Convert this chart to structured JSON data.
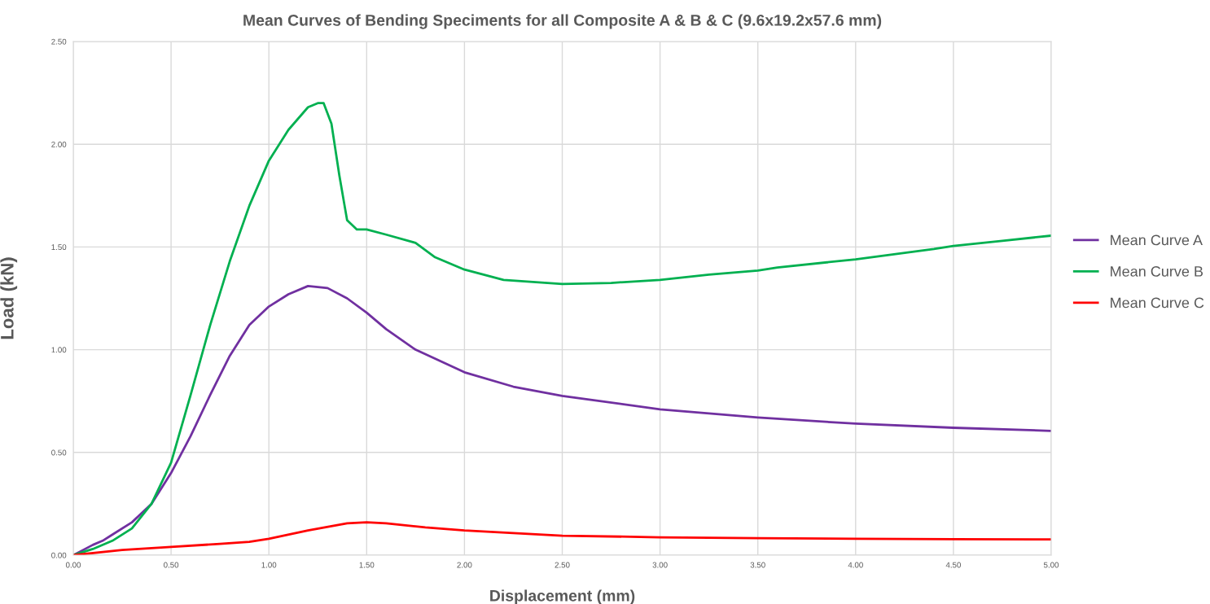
{
  "chart_data": {
    "type": "line",
    "title": "Mean Curves of Bending Speciments for all Composite A & B & C (9.6x19.2x57.6 mm)",
    "xlabel": "Displacement (mm)",
    "ylabel": "Load (kN)",
    "xlim": [
      0,
      5
    ],
    "ylim": [
      0,
      2.5
    ],
    "xticks": [
      {
        "value": 0,
        "label": "0.00"
      },
      {
        "value": 0.5,
        "label": "0.50"
      },
      {
        "value": 1,
        "label": "1.00"
      },
      {
        "value": 1.5,
        "label": "1.50"
      },
      {
        "value": 2,
        "label": "2.00"
      },
      {
        "value": 2.5,
        "label": "2.50"
      },
      {
        "value": 3,
        "label": "3.00"
      },
      {
        "value": 3.5,
        "label": "3.50"
      },
      {
        "value": 4,
        "label": "4.00"
      },
      {
        "value": 4.5,
        "label": "4.50"
      },
      {
        "value": 5,
        "label": "5.00"
      }
    ],
    "yticks": [
      {
        "value": 0,
        "label": "0.00"
      },
      {
        "value": 0.5,
        "label": "0.50"
      },
      {
        "value": 1,
        "label": "1.00"
      },
      {
        "value": 1.5,
        "label": "1.50"
      },
      {
        "value": 2,
        "label": "2.00"
      },
      {
        "value": 2.5,
        "label": "2.50"
      }
    ],
    "grid": true,
    "legend": "right",
    "marker": "none",
    "line_style": "solid",
    "series": [
      {
        "name": "Mean Curve A",
        "color": "#7030a0",
        "x": [
          0,
          0.1,
          0.15,
          0.2,
          0.3,
          0.4,
          0.5,
          0.6,
          0.7,
          0.8,
          0.9,
          1.0,
          1.1,
          1.2,
          1.3,
          1.4,
          1.5,
          1.6,
          1.75,
          2.0,
          2.25,
          2.5,
          3.0,
          3.5,
          4.0,
          4.5,
          5.0
        ],
        "values": [
          0,
          0.05,
          0.07,
          0.1,
          0.16,
          0.25,
          0.4,
          0.58,
          0.78,
          0.97,
          1.12,
          1.21,
          1.27,
          1.31,
          1.3,
          1.25,
          1.18,
          1.1,
          1.0,
          0.89,
          0.82,
          0.775,
          0.71,
          0.67,
          0.64,
          0.62,
          0.605
        ]
      },
      {
        "name": "Mean Curve B",
        "color": "#00b050",
        "x": [
          0,
          0.1,
          0.2,
          0.3,
          0.4,
          0.5,
          0.6,
          0.7,
          0.8,
          0.9,
          1.0,
          1.1,
          1.2,
          1.25,
          1.28,
          1.32,
          1.36,
          1.4,
          1.45,
          1.5,
          1.6,
          1.75,
          1.85,
          2.0,
          2.2,
          2.5,
          2.75,
          3.0,
          3.25,
          3.5,
          3.6,
          4.0,
          4.4,
          4.5,
          4.75,
          5.0
        ],
        "values": [
          0,
          0.03,
          0.07,
          0.13,
          0.25,
          0.45,
          0.78,
          1.12,
          1.43,
          1.7,
          1.92,
          2.07,
          2.18,
          2.2,
          2.2,
          2.1,
          1.85,
          1.63,
          1.585,
          1.585,
          1.56,
          1.52,
          1.45,
          1.39,
          1.34,
          1.32,
          1.325,
          1.34,
          1.365,
          1.385,
          1.4,
          1.44,
          1.49,
          1.505,
          1.53,
          1.555
        ]
      },
      {
        "name": "Mean Curve C",
        "color": "#ff0000",
        "x": [
          0,
          0.25,
          0.5,
          0.75,
          0.9,
          1.0,
          1.2,
          1.4,
          1.5,
          1.6,
          1.8,
          2.0,
          2.5,
          3.0,
          3.5,
          4.0,
          4.5,
          5.0
        ],
        "values": [
          0,
          0.025,
          0.04,
          0.055,
          0.065,
          0.08,
          0.12,
          0.155,
          0.16,
          0.155,
          0.135,
          0.12,
          0.095,
          0.087,
          0.083,
          0.08,
          0.078,
          0.077
        ]
      }
    ]
  }
}
